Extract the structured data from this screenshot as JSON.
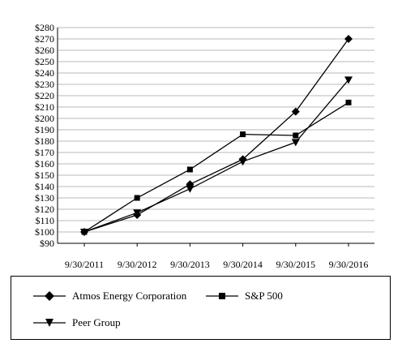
{
  "chart_data": {
    "type": "line",
    "title": "",
    "xlabel": "",
    "ylabel": "",
    "categories": [
      "9/30/2011",
      "9/30/2012",
      "9/30/2013",
      "9/30/2014",
      "9/30/2015",
      "9/30/2016"
    ],
    "ylim": [
      90,
      280
    ],
    "y_ticks": [
      "$90",
      "$100",
      "$110",
      "$120",
      "$130",
      "$140",
      "$150",
      "$160",
      "$170",
      "$180",
      "$190",
      "$200",
      "$210",
      "$220",
      "$230",
      "$240",
      "$250",
      "$260",
      "$270",
      "$280"
    ],
    "grid": "horizontal",
    "legend_placement": "bottom",
    "series": [
      {
        "name": "Atmos Energy Corporation",
        "marker": "diamond",
        "color": "#000000",
        "values": [
          100,
          115,
          142,
          164,
          206,
          270
        ]
      },
      {
        "name": "S&P 500",
        "marker": "square",
        "color": "#000000",
        "values": [
          100,
          130,
          155,
          186,
          185,
          214
        ]
      },
      {
        "name": "Peer Group",
        "marker": "triangle-down",
        "color": "#000000",
        "values": [
          100,
          117,
          138,
          162,
          179,
          234
        ]
      }
    ]
  }
}
